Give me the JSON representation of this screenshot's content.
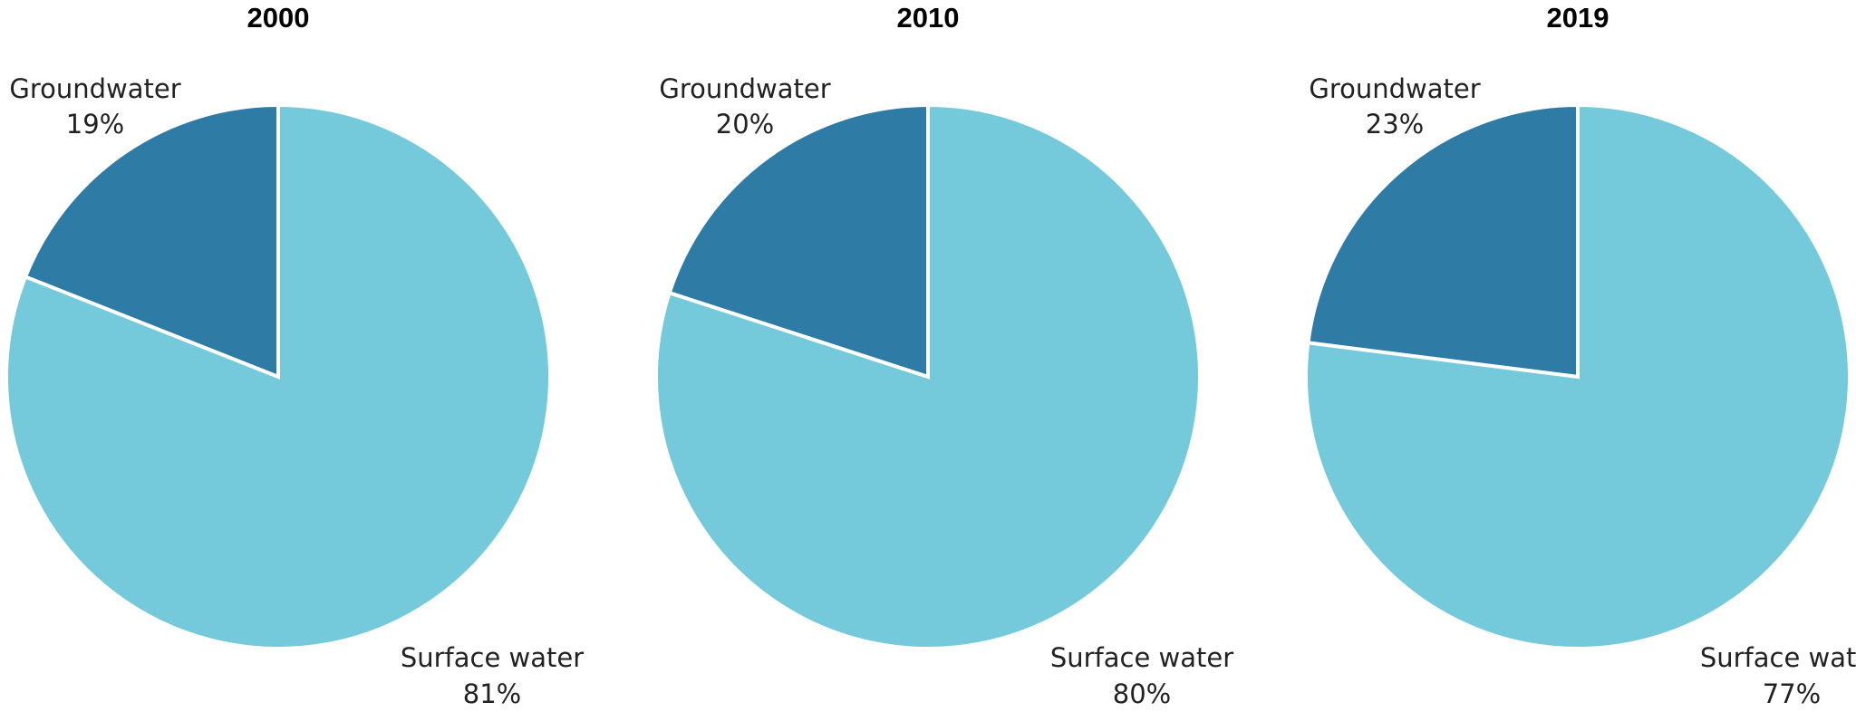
{
  "chart_data": [
    {
      "type": "pie",
      "title": "2000",
      "slices": [
        {
          "label": "Groundwater",
          "percent_text": "19%",
          "value": 19,
          "color": "#2e7ca6"
        },
        {
          "label": "Surface water",
          "percent_text": "81%",
          "value": 81,
          "color": "#74c9da"
        }
      ]
    },
    {
      "type": "pie",
      "title": "2010",
      "slices": [
        {
          "label": "Groundwater",
          "percent_text": "20%",
          "value": 20,
          "color": "#2e7ca6"
        },
        {
          "label": "Surface water",
          "percent_text": "80%",
          "value": 80,
          "color": "#74c9da"
        }
      ]
    },
    {
      "type": "pie",
      "title": "2019",
      "slices": [
        {
          "label": "Groundwater",
          "percent_text": "23%",
          "value": 23,
          "color": "#2e7ca6"
        },
        {
          "label": "Surface water",
          "percent_text": "77%",
          "value": 77,
          "color": "#74c9da"
        }
      ]
    }
  ]
}
